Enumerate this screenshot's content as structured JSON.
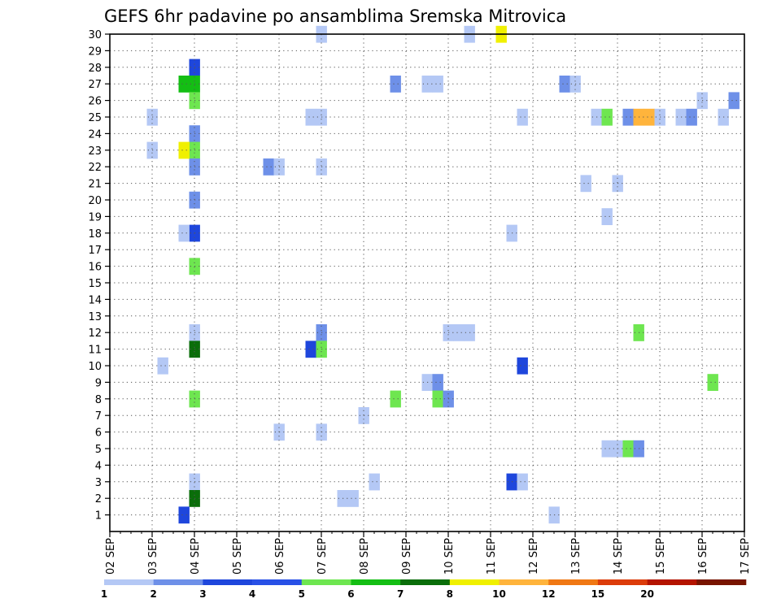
{
  "chart_data": {
    "type": "heatmap",
    "title": "GEFS 6hr padavine po ansamblima Sremska Mitrovica",
    "xlabel": "",
    "ylabel": "",
    "x_ticks": [
      "02 SEP",
      "03 SEP",
      "04 SEP",
      "05 SEP",
      "06 SEP",
      "07 SEP",
      "08 SEP",
      "09 SEP",
      "10 SEP",
      "11 SEP",
      "12 SEP",
      "13 SEP",
      "14 SEP",
      "15 SEP",
      "16 SEP",
      "17 SEP"
    ],
    "xlim_days": [
      2,
      17
    ],
    "y_ticks": [
      1,
      2,
      3,
      4,
      5,
      6,
      7,
      8,
      9,
      10,
      11,
      12,
      13,
      14,
      15,
      16,
      17,
      18,
      19,
      20,
      21,
      22,
      23,
      24,
      25,
      26,
      27,
      28,
      29,
      30
    ],
    "ylim": [
      0,
      30
    ],
    "grid": true,
    "time_step_days": 0.25,
    "colorbar": {
      "labels": [
        "1",
        "2",
        "3",
        "4",
        "5",
        "6",
        "7",
        "8",
        "10",
        "12",
        "15",
        "20"
      ],
      "colors": [
        "#b4c8f5",
        "#6e90e8",
        "#1e46dc",
        "#2850e6",
        "#6ee650",
        "#14be14",
        "#0a6e0a",
        "#f0f000",
        "#ffb43c",
        "#f07814",
        "#dc3c0a",
        "#b41400",
        "#781400"
      ]
    },
    "cells": [
      {
        "t": "04 SEP 00",
        "m": 28,
        "c": 2
      },
      {
        "t": "04 SEP 00",
        "m": 27,
        "c": 5
      },
      {
        "t": "03 SEP 18",
        "m": 27,
        "c": 5
      },
      {
        "t": "04 SEP 00",
        "m": 26,
        "c": 4
      },
      {
        "t": "04 SEP 00",
        "m": 24,
        "c": 1
      },
      {
        "t": "04 SEP 00",
        "m": 23,
        "c": 4
      },
      {
        "t": "03 SEP 18",
        "m": 23,
        "c": 7
      },
      {
        "t": "04 SEP 00",
        "m": 22,
        "c": 1
      },
      {
        "t": "04 SEP 00",
        "m": 20,
        "c": 1
      },
      {
        "t": "04 SEP 00",
        "m": 18,
        "c": 2
      },
      {
        "t": "03 SEP 18",
        "m": 18,
        "c": 0
      },
      {
        "t": "04 SEP 00",
        "m": 16,
        "c": 4
      },
      {
        "t": "04 SEP 00",
        "m": 12,
        "c": 0
      },
      {
        "t": "04 SEP 00",
        "m": 11,
        "c": 6
      },
      {
        "t": "03 SEP 06",
        "m": 10,
        "c": 0
      },
      {
        "t": "04 SEP 00",
        "m": 8,
        "c": 4
      },
      {
        "t": "04 SEP 00",
        "m": 3,
        "c": 0
      },
      {
        "t": "04 SEP 00",
        "m": 2,
        "c": 6
      },
      {
        "t": "03 SEP 18",
        "m": 1,
        "c": 2
      },
      {
        "t": "03 SEP 00",
        "m": 25,
        "c": 0
      },
      {
        "t": "03 SEP 00",
        "m": 23,
        "c": 0
      },
      {
        "t": "06 SEP 18",
        "m": 25,
        "c": 0
      },
      {
        "t": "07 SEP 00",
        "m": 25,
        "c": 0
      },
      {
        "t": "07 SEP 00",
        "m": 30,
        "c": 0
      },
      {
        "t": "05 SEP 18",
        "m": 22,
        "c": 1
      },
      {
        "t": "06 SEP 00",
        "m": 22,
        "c": 0
      },
      {
        "t": "07 SEP 00",
        "m": 22,
        "c": 0
      },
      {
        "t": "06 SEP 00",
        "m": 6,
        "c": 0
      },
      {
        "t": "07 SEP 00",
        "m": 6,
        "c": 0
      },
      {
        "t": "07 SEP 00",
        "m": 12,
        "c": 1
      },
      {
        "t": "06 SEP 18",
        "m": 11,
        "c": 2
      },
      {
        "t": "07 SEP 00",
        "m": 11,
        "c": 4
      },
      {
        "t": "08 SEP 00",
        "m": 7,
        "c": 0
      },
      {
        "t": "08 SEP 06",
        "m": 3,
        "c": 0
      },
      {
        "t": "07 SEP 12",
        "m": 2,
        "c": 0
      },
      {
        "t": "07 SEP 18",
        "m": 2,
        "c": 0
      },
      {
        "t": "08 SEP 18",
        "m": 27,
        "c": 1
      },
      {
        "t": "09 SEP 12",
        "m": 27,
        "c": 0
      },
      {
        "t": "09 SEP 18",
        "m": 27,
        "c": 0
      },
      {
        "t": "08 SEP 18",
        "m": 8,
        "c": 4
      },
      {
        "t": "09 SEP 12",
        "m": 9,
        "c": 0
      },
      {
        "t": "09 SEP 18",
        "m": 9,
        "c": 1
      },
      {
        "t": "09 SEP 18",
        "m": 8,
        "c": 4
      },
      {
        "t": "10 SEP 00",
        "m": 8,
        "c": 1
      },
      {
        "t": "10 SEP 00",
        "m": 12,
        "c": 0
      },
      {
        "t": "10 SEP 06",
        "m": 12,
        "c": 0
      },
      {
        "t": "10 SEP 12",
        "m": 12,
        "c": 0
      },
      {
        "t": "10 SEP 12",
        "m": 30,
        "c": 0
      },
      {
        "t": "11 SEP 06",
        "m": 30,
        "c": 7
      },
      {
        "t": "11 SEP 18",
        "m": 25,
        "c": 0
      },
      {
        "t": "11 SEP 18",
        "m": 10,
        "c": 2
      },
      {
        "t": "11 SEP 12",
        "m": 18,
        "c": 0
      },
      {
        "t": "11 SEP 12",
        "m": 3,
        "c": 2
      },
      {
        "t": "11 SEP 18",
        "m": 3,
        "c": 0
      },
      {
        "t": "12 SEP 12",
        "m": 1,
        "c": 0
      },
      {
        "t": "12 SEP 18",
        "m": 27,
        "c": 1
      },
      {
        "t": "13 SEP 00",
        "m": 27,
        "c": 0
      },
      {
        "t": "13 SEP 06",
        "m": 21,
        "c": 0
      },
      {
        "t": "13 SEP 12",
        "m": 25,
        "c": 0
      },
      {
        "t": "13 SEP 18",
        "m": 25,
        "c": 4
      },
      {
        "t": "14 SEP 06",
        "m": 25,
        "c": 1
      },
      {
        "t": "14 SEP 12",
        "m": 25,
        "c": 8
      },
      {
        "t": "14 SEP 18",
        "m": 25,
        "c": 8
      },
      {
        "t": "15 SEP 00",
        "m": 25,
        "c": 0
      },
      {
        "t": "15 SEP 12",
        "m": 25,
        "c": 0
      },
      {
        "t": "15 SEP 18",
        "m": 25,
        "c": 1
      },
      {
        "t": "16 SEP 12",
        "m": 25,
        "c": 0
      },
      {
        "t": "14 SEP 00",
        "m": 21,
        "c": 0
      },
      {
        "t": "13 SEP 18",
        "m": 19,
        "c": 0
      },
      {
        "t": "14 SEP 12",
        "m": 12,
        "c": 4
      },
      {
        "t": "13 SEP 18",
        "m": 5,
        "c": 0
      },
      {
        "t": "14 SEP 00",
        "m": 5,
        "c": 0
      },
      {
        "t": "14 SEP 06",
        "m": 5,
        "c": 4
      },
      {
        "t": "14 SEP 12",
        "m": 5,
        "c": 1
      },
      {
        "t": "16 SEP 00",
        "m": 26,
        "c": 0
      },
      {
        "t": "16 SEP 18",
        "m": 26,
        "c": 1
      },
      {
        "t": "16 SEP 06",
        "m": 9,
        "c": 4
      }
    ]
  }
}
